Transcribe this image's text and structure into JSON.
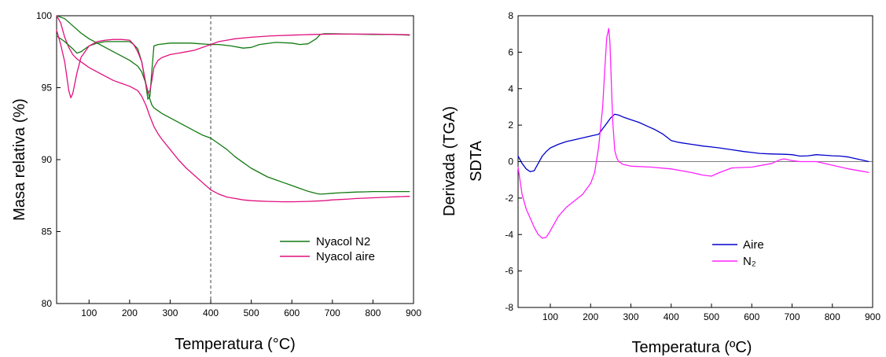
{
  "chart_data": [
    {
      "type": "line",
      "xlabel": "Temperatura (°C)",
      "ylabel": "Masa relativa (%)",
      "xlim": [
        20,
        900
      ],
      "ylim": [
        80,
        100
      ],
      "xticks": [
        100,
        200,
        300,
        400,
        500,
        600,
        700,
        800,
        900
      ],
      "yticks": [
        80,
        85,
        90,
        95,
        100
      ],
      "grid": false,
      "legend_position": "bottom-right",
      "vline_x": 400,
      "series": [
        {
          "name": "Nyacol N2",
          "color": "#117a11",
          "x": [
            20,
            40,
            60,
            80,
            100,
            120,
            140,
            160,
            180,
            200,
            220,
            230,
            240,
            250,
            255,
            260,
            270,
            280,
            300,
            320,
            340,
            360,
            380,
            400,
            420,
            440,
            460,
            480,
            500,
            520,
            540,
            560,
            580,
            600,
            620,
            640,
            660,
            670,
            680,
            700,
            720,
            740,
            760,
            780,
            800,
            820,
            840,
            860,
            880,
            890
          ],
          "y": [
            100,
            99.8,
            99.3,
            98.8,
            98.4,
            98.1,
            97.8,
            97.5,
            97.2,
            96.9,
            96.5,
            96.1,
            95.3,
            94.2,
            93.8,
            93.6,
            93.4,
            93.2,
            92.9,
            92.6,
            92.3,
            92.0,
            91.7,
            91.5,
            91.1,
            90.7,
            90.2,
            89.8,
            89.4,
            89.1,
            88.8,
            88.6,
            88.4,
            88.2,
            88.0,
            87.8,
            87.65,
            87.6,
            87.62,
            87.66,
            87.7,
            87.72,
            87.75,
            87.76,
            87.78,
            87.78,
            87.78,
            87.78,
            87.78,
            87.78
          ]
        },
        {
          "name": "Nyacol aire",
          "color": "#e0117f",
          "x": [
            20,
            30,
            40,
            50,
            60,
            70,
            80,
            90,
            100,
            120,
            140,
            160,
            180,
            200,
            220,
            230,
            240,
            250,
            260,
            270,
            280,
            300,
            320,
            340,
            360,
            380,
            400,
            420,
            440,
            460,
            480,
            500,
            520,
            540,
            560,
            580,
            600,
            620,
            640,
            660,
            680,
            700,
            720,
            740,
            760,
            780,
            800,
            820,
            840,
            860,
            880,
            890
          ],
          "y": [
            100,
            99.5,
            98.5,
            97.8,
            97.3,
            97.0,
            96.8,
            96.6,
            96.4,
            96.1,
            95.8,
            95.5,
            95.3,
            95.1,
            94.8,
            94.4,
            93.8,
            93.0,
            92.3,
            91.8,
            91.4,
            90.7,
            90.0,
            89.4,
            88.9,
            88.4,
            87.9,
            87.6,
            87.4,
            87.3,
            87.2,
            87.15,
            87.12,
            87.1,
            87.08,
            87.07,
            87.07,
            87.08,
            87.1,
            87.12,
            87.15,
            87.2,
            87.23,
            87.26,
            87.3,
            87.32,
            87.35,
            87.37,
            87.4,
            87.42,
            87.44,
            87.45
          ]
        },
        {
          "name": "",
          "color": "#117a11",
          "x": [
            20,
            40,
            60,
            70,
            80,
            90,
            100,
            120,
            140,
            160,
            180,
            200,
            210,
            220,
            230,
            240,
            245,
            250,
            255,
            260,
            270,
            300,
            350,
            400,
            420,
            450,
            480,
            500,
            520,
            560,
            600,
            620,
            640,
            660,
            670,
            680,
            700,
            750,
            800,
            850,
            890
          ],
          "y": [
            98.6,
            98.2,
            97.7,
            97.4,
            97.5,
            97.7,
            97.9,
            98.1,
            98.2,
            98.2,
            98.2,
            98.2,
            98.0,
            97.7,
            96.8,
            95.2,
            94.2,
            94.4,
            96.2,
            97.9,
            98.0,
            98.1,
            98.1,
            98.0,
            98.0,
            97.9,
            97.75,
            97.8,
            98.0,
            98.15,
            98.1,
            98.0,
            98.05,
            98.4,
            98.7,
            98.75,
            98.75,
            98.72,
            98.7,
            98.7,
            98.65
          ]
        },
        {
          "name": "",
          "color": "#e0117f",
          "x": [
            20,
            30,
            40,
            50,
            55,
            60,
            70,
            80,
            100,
            120,
            140,
            160,
            180,
            200,
            210,
            220,
            230,
            240,
            245,
            250,
            255,
            260,
            270,
            280,
            300,
            320,
            340,
            360,
            380,
            400,
            420,
            440,
            460,
            500,
            550,
            600,
            650,
            700,
            750,
            800,
            850,
            890
          ],
          "y": [
            99.0,
            98.0,
            96.8,
            94.8,
            94.3,
            94.6,
            96.0,
            97.1,
            97.9,
            98.2,
            98.3,
            98.35,
            98.35,
            98.3,
            98.0,
            97.5,
            96.8,
            95.3,
            94.6,
            94.8,
            95.5,
            96.4,
            96.9,
            97.1,
            97.3,
            97.4,
            97.5,
            97.6,
            97.8,
            98.0,
            98.2,
            98.3,
            98.4,
            98.5,
            98.6,
            98.65,
            98.7,
            98.72,
            98.72,
            98.72,
            98.7,
            98.68
          ]
        }
      ]
    },
    {
      "type": "line",
      "xlabel": "Temperatura (ºC)",
      "ylabel_outer": "Derivada (TGA)",
      "ylabel_inner": "SDTA",
      "xlim": [
        20,
        900
      ],
      "ylim": [
        -8,
        8
      ],
      "xticks": [
        100,
        200,
        300,
        400,
        500,
        600,
        700,
        800,
        900
      ],
      "yticks": [
        -8,
        -6,
        -4,
        -2,
        0,
        2,
        4,
        6,
        8
      ],
      "grid": false,
      "legend_position": "bottom-right",
      "series": [
        {
          "name": "Aire",
          "color": "#0000cc",
          "x": [
            20,
            30,
            40,
            50,
            60,
            70,
            80,
            90,
            100,
            120,
            140,
            160,
            180,
            200,
            220,
            230,
            240,
            250,
            260,
            270,
            280,
            300,
            320,
            340,
            360,
            380,
            400,
            420,
            450,
            480,
            500,
            520,
            550,
            580,
            600,
            620,
            650,
            680,
            700,
            720,
            740,
            760,
            780,
            800,
            820,
            840,
            860,
            880,
            890
          ],
          "y": [
            0.3,
            -0.1,
            -0.4,
            -0.55,
            -0.5,
            -0.1,
            0.3,
            0.55,
            0.75,
            0.95,
            1.1,
            1.2,
            1.3,
            1.4,
            1.5,
            1.8,
            2.1,
            2.4,
            2.6,
            2.55,
            2.45,
            2.3,
            2.15,
            1.95,
            1.75,
            1.5,
            1.15,
            1.05,
            0.95,
            0.85,
            0.8,
            0.75,
            0.65,
            0.55,
            0.5,
            0.45,
            0.42,
            0.4,
            0.38,
            0.3,
            0.32,
            0.38,
            0.35,
            0.32,
            0.3,
            0.25,
            0.15,
            0.05,
            0.0
          ]
        },
        {
          "name": "N₂",
          "color": "#ff22ff",
          "x": [
            20,
            30,
            40,
            50,
            60,
            70,
            80,
            90,
            100,
            120,
            140,
            160,
            180,
            200,
            210,
            220,
            230,
            235,
            240,
            245,
            248,
            252,
            255,
            260,
            265,
            270,
            280,
            300,
            350,
            400,
            450,
            480,
            500,
            520,
            550,
            600,
            650,
            670,
            680,
            700,
            720,
            760,
            800,
            840,
            880,
            890
          ],
          "y": [
            -0.3,
            -1.8,
            -2.6,
            -3.1,
            -3.6,
            -4.0,
            -4.2,
            -4.15,
            -3.8,
            -3.0,
            -2.5,
            -2.15,
            -1.8,
            -1.2,
            -0.6,
            0.8,
            3.0,
            5.0,
            6.8,
            7.3,
            6.5,
            4.0,
            2.2,
            0.6,
            0.2,
            0.0,
            -0.15,
            -0.25,
            -0.3,
            -0.4,
            -0.6,
            -0.75,
            -0.8,
            -0.6,
            -0.35,
            -0.3,
            -0.1,
            0.1,
            0.15,
            0.05,
            0.0,
            0.0,
            -0.2,
            -0.4,
            -0.55,
            -0.6
          ]
        }
      ]
    }
  ]
}
